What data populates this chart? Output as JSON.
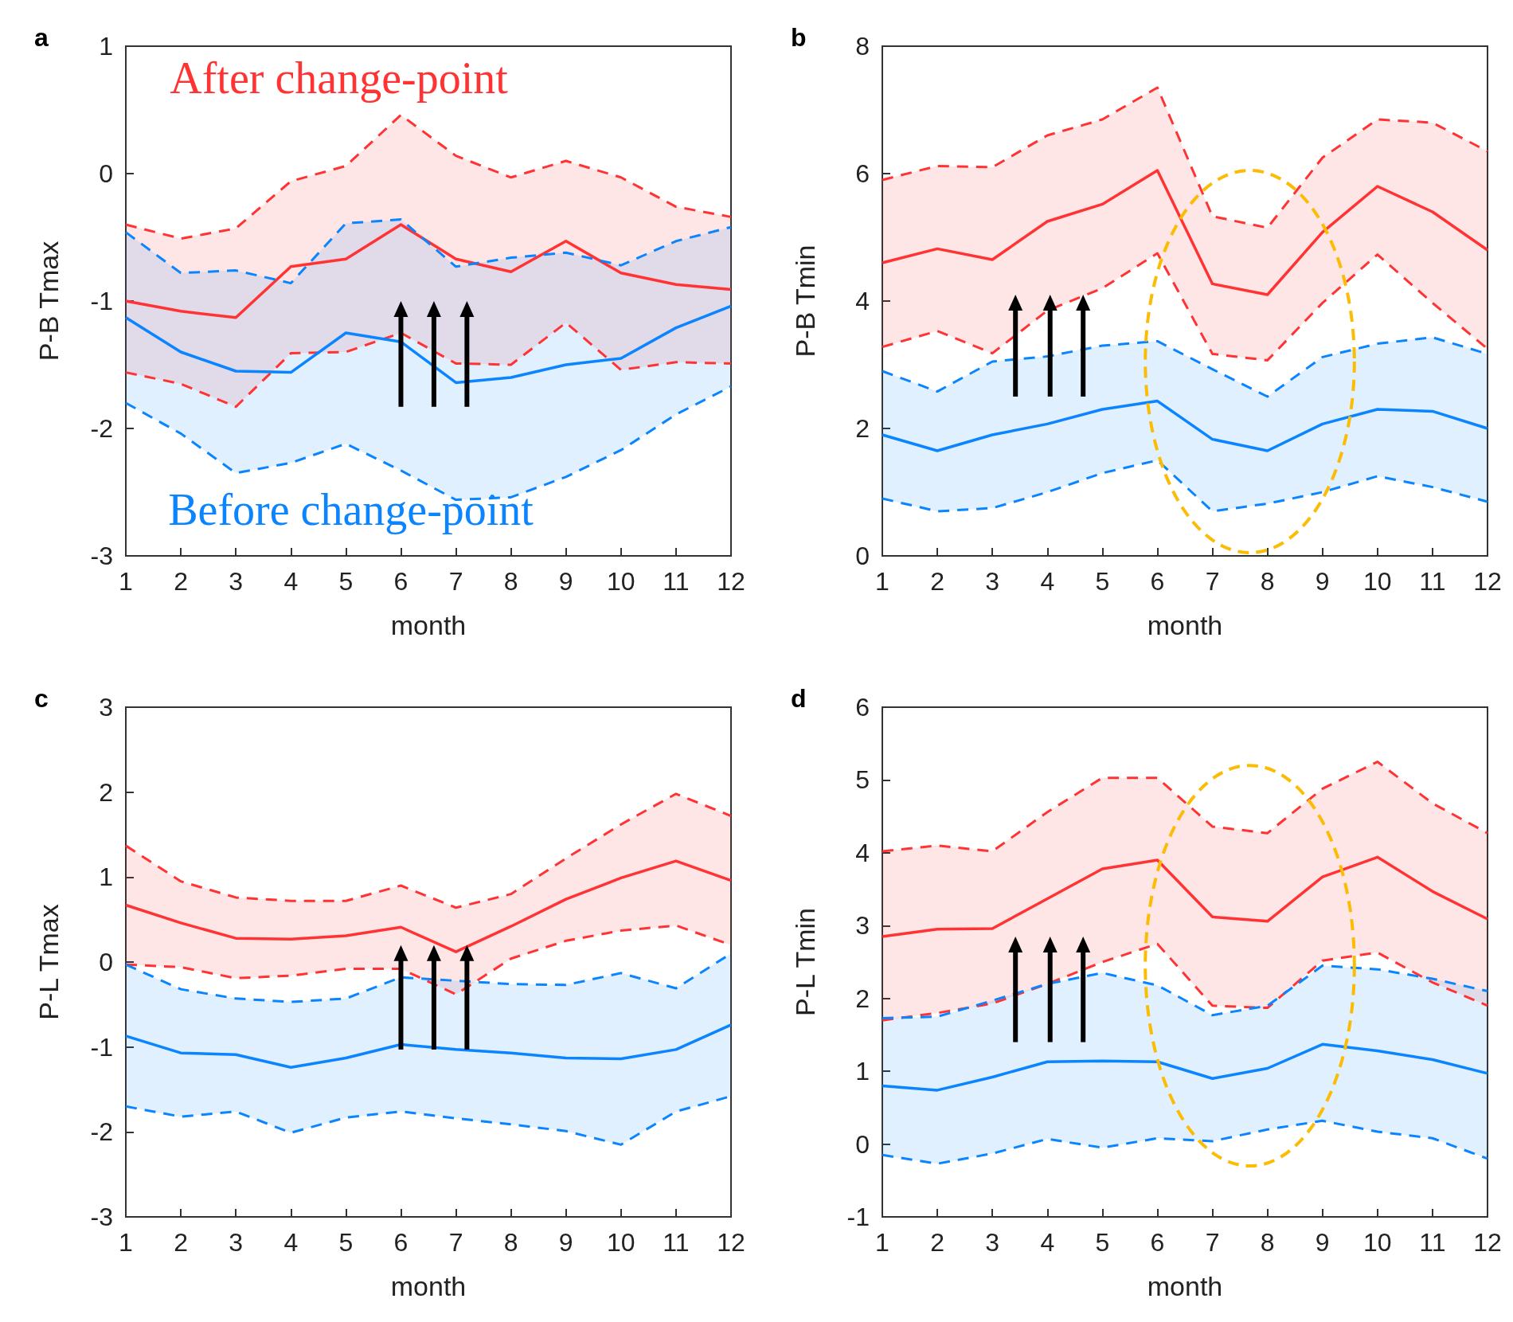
{
  "chart_data": [
    {
      "type": "line",
      "title": "a",
      "xlabel": "month",
      "ylabel": "P-B Tmax",
      "x": [
        1,
        2,
        3,
        4,
        5,
        6,
        7,
        8,
        9,
        10,
        11,
        12
      ],
      "xlim": [
        1,
        12
      ],
      "xticks": [
        1,
        2,
        3,
        4,
        5,
        6,
        7,
        8,
        9,
        10,
        11,
        12
      ],
      "ylim": [
        -3,
        1
      ],
      "yticks": [
        -3,
        -2,
        -1,
        0,
        1
      ],
      "grid": false,
      "series": [
        {
          "name": "After change-point",
          "color": "#ff3333",
          "values": [
            -1.0,
            -1.08,
            -1.13,
            -0.73,
            -0.67,
            -0.4,
            -0.67,
            -0.77,
            -0.53,
            -0.78,
            -0.87,
            -0.91
          ],
          "lower": [
            -1.56,
            -1.65,
            -1.83,
            -1.41,
            -1.4,
            -1.25,
            -1.49,
            -1.5,
            -1.17,
            -1.54,
            -1.48,
            -1.49
          ],
          "upper": [
            -0.4,
            -0.51,
            -0.43,
            -0.06,
            0.06,
            0.46,
            0.14,
            -0.03,
            0.1,
            -0.03,
            -0.26,
            -0.34
          ]
        },
        {
          "color": "#ff3333",
          "line_style": "dashed",
          "values": [
            -1.56,
            -1.65,
            -1.83,
            -1.41,
            -1.4,
            -1.25,
            -1.49,
            -1.5,
            -1.17,
            -1.54,
            -1.48,
            -1.49
          ]
        },
        {
          "color": "#ff3333",
          "line_style": "dashed",
          "values": [
            -0.4,
            -0.51,
            -0.43,
            -0.06,
            0.06,
            0.46,
            0.14,
            -0.03,
            0.1,
            -0.03,
            -0.26,
            -0.34
          ]
        },
        {
          "name": "Before change-point",
          "color": "#0a84ff",
          "values": [
            -1.13,
            -1.4,
            -1.55,
            -1.56,
            -1.25,
            -1.32,
            -1.64,
            -1.6,
            -1.5,
            -1.45,
            -1.21,
            -1.04
          ],
          "lower": [
            -1.8,
            -2.04,
            -2.35,
            -2.27,
            -2.12,
            -2.33,
            -2.56,
            -2.54,
            -2.38,
            -2.17,
            -1.89,
            -1.67
          ],
          "upper": [
            -0.46,
            -0.78,
            -0.76,
            -0.86,
            -0.39,
            -0.36,
            -0.73,
            -0.66,
            -0.62,
            -0.72,
            -0.53,
            -0.42
          ]
        },
        {
          "color": "#0a84ff",
          "line_style": "dashed",
          "values": [
            -1.8,
            -2.04,
            -2.35,
            -2.27,
            -2.12,
            -2.33,
            -2.56,
            -2.54,
            -2.38,
            -2.17,
            -1.89,
            -1.67
          ]
        },
        {
          "color": "#0a84ff",
          "line_style": "dashed",
          "values": [
            -0.46,
            -0.78,
            -0.76,
            -0.86,
            -0.39,
            -0.36,
            -0.73,
            -0.66,
            -0.62,
            -0.72,
            -0.53,
            -0.42
          ]
        }
      ]
    },
    {
      "type": "line",
      "title": "b",
      "xlabel": "month",
      "ylabel": "P-B Tmin",
      "x": [
        1,
        2,
        3,
        4,
        5,
        6,
        7,
        8,
        9,
        10,
        11,
        12
      ],
      "xlim": [
        1,
        12
      ],
      "xticks": [
        1,
        2,
        3,
        4,
        5,
        6,
        7,
        8,
        9,
        10,
        11,
        12
      ],
      "ylim": [
        0,
        8
      ],
      "yticks": [
        0,
        2,
        4,
        6,
        8
      ],
      "grid": false,
      "series": [
        {
          "color": "#ff3333",
          "values": [
            4.6,
            4.82,
            4.65,
            5.25,
            5.52,
            6.05,
            4.27,
            4.1,
            5.08,
            5.8,
            5.4,
            4.8
          ],
          "lower": [
            3.28,
            3.53,
            3.18,
            3.85,
            4.2,
            4.75,
            3.17,
            3.07,
            3.97,
            4.73,
            3.97,
            3.25
          ],
          "upper": [
            5.9,
            6.12,
            6.1,
            6.6,
            6.85,
            7.35,
            5.33,
            5.15,
            6.25,
            6.85,
            6.8,
            6.35
          ]
        },
        {
          "color": "#ff3333",
          "line_style": "dashed",
          "values": [
            3.28,
            3.53,
            3.18,
            3.85,
            4.2,
            4.75,
            3.17,
            3.07,
            3.97,
            4.73,
            3.97,
            3.25
          ]
        },
        {
          "color": "#ff3333",
          "line_style": "dashed",
          "values": [
            5.9,
            6.12,
            6.1,
            6.6,
            6.85,
            7.35,
            5.33,
            5.15,
            6.25,
            6.85,
            6.8,
            6.35
          ]
        },
        {
          "color": "#0a84ff",
          "values": [
            1.9,
            1.65,
            1.9,
            2.07,
            2.3,
            2.43,
            1.83,
            1.65,
            2.07,
            2.3,
            2.27,
            2.0
          ],
          "lower": [
            0.9,
            0.7,
            0.75,
            1.0,
            1.3,
            1.5,
            0.7,
            0.82,
            1.0,
            1.25,
            1.08,
            0.85
          ],
          "upper": [
            2.9,
            2.58,
            3.05,
            3.13,
            3.3,
            3.37,
            2.93,
            2.5,
            3.12,
            3.33,
            3.43,
            3.17
          ]
        },
        {
          "color": "#0a84ff",
          "line_style": "dashed",
          "values": [
            0.9,
            0.7,
            0.75,
            1.0,
            1.3,
            1.5,
            0.7,
            0.82,
            1.0,
            1.25,
            1.08,
            0.85
          ]
        },
        {
          "color": "#0a84ff",
          "line_style": "dashed",
          "values": [
            2.9,
            2.58,
            3.05,
            3.13,
            3.3,
            3.37,
            2.93,
            2.5,
            3.12,
            3.33,
            3.43,
            3.17
          ]
        }
      ]
    },
    {
      "type": "line",
      "title": "c",
      "xlabel": "month",
      "ylabel": "P-L Tmax",
      "x": [
        1,
        2,
        3,
        4,
        5,
        6,
        7,
        8,
        9,
        10,
        11,
        12
      ],
      "xlim": [
        1,
        12
      ],
      "xticks": [
        1,
        2,
        3,
        4,
        5,
        6,
        7,
        8,
        9,
        10,
        11,
        12
      ],
      "ylim": [
        -3,
        3
      ],
      "yticks": [
        -3,
        -2,
        -1,
        0,
        1,
        2,
        3
      ],
      "grid": false,
      "series": [
        {
          "color": "#ff3333",
          "values": [
            0.67,
            0.46,
            0.28,
            0.27,
            0.31,
            0.41,
            0.12,
            0.42,
            0.74,
            0.99,
            1.19,
            0.96
          ],
          "lower": [
            -0.03,
            -0.06,
            -0.19,
            -0.16,
            -0.08,
            -0.08,
            -0.38,
            0.04,
            0.25,
            0.37,
            0.43,
            0.2
          ],
          "upper": [
            1.37,
            0.95,
            0.76,
            0.72,
            0.72,
            0.9,
            0.64,
            0.8,
            1.22,
            1.62,
            1.98,
            1.72
          ]
        },
        {
          "color": "#ff3333",
          "line_style": "dashed",
          "values": [
            -0.03,
            -0.06,
            -0.19,
            -0.16,
            -0.08,
            -0.08,
            -0.38,
            0.04,
            0.25,
            0.37,
            0.43,
            0.2
          ]
        },
        {
          "color": "#ff3333",
          "line_style": "dashed",
          "values": [
            1.37,
            0.95,
            0.76,
            0.72,
            0.72,
            0.9,
            0.64,
            0.8,
            1.22,
            1.62,
            1.98,
            1.72
          ]
        },
        {
          "color": "#0a84ff",
          "values": [
            -0.87,
            -1.07,
            -1.09,
            -1.24,
            -1.13,
            -0.97,
            -1.03,
            -1.07,
            -1.13,
            -1.14,
            -1.03,
            -0.74
          ],
          "lower": [
            -1.7,
            -1.82,
            -1.76,
            -2.01,
            -1.83,
            -1.76,
            -1.84,
            -1.91,
            -1.99,
            -2.15,
            -1.76,
            -1.58
          ],
          "upper": [
            -0.03,
            -0.32,
            -0.43,
            -0.47,
            -0.43,
            -0.18,
            -0.22,
            -0.26,
            -0.27,
            -0.13,
            -0.31,
            0.1
          ]
        },
        {
          "color": "#0a84ff",
          "line_style": "dashed",
          "values": [
            -1.7,
            -1.82,
            -1.76,
            -2.01,
            -1.83,
            -1.76,
            -1.84,
            -1.91,
            -1.99,
            -2.15,
            -1.76,
            -1.58
          ]
        },
        {
          "color": "#0a84ff",
          "line_style": "dashed",
          "values": [
            -0.03,
            -0.32,
            -0.43,
            -0.47,
            -0.43,
            -0.18,
            -0.22,
            -0.26,
            -0.27,
            -0.13,
            -0.31,
            0.1
          ]
        }
      ]
    },
    {
      "type": "line",
      "title": "d",
      "xlabel": "month",
      "ylabel": "P-L Tmin",
      "x": [
        1,
        2,
        3,
        4,
        5,
        6,
        7,
        8,
        9,
        10,
        11,
        12
      ],
      "xlim": [
        1,
        12
      ],
      "xticks": [
        1,
        2,
        3,
        4,
        5,
        6,
        7,
        8,
        9,
        10,
        11,
        12
      ],
      "ylim": [
        -1,
        6
      ],
      "yticks": [
        -1,
        0,
        1,
        2,
        3,
        4,
        5,
        6
      ],
      "grid": false,
      "series": [
        {
          "color": "#ff3333",
          "values": [
            2.85,
            2.95,
            2.96,
            3.37,
            3.78,
            3.9,
            3.12,
            3.06,
            3.67,
            3.94,
            3.47,
            3.09
          ],
          "lower": [
            1.7,
            1.8,
            1.93,
            2.2,
            2.5,
            2.75,
            1.9,
            1.87,
            2.52,
            2.63,
            2.22,
            1.9
          ],
          "upper": [
            4.02,
            4.1,
            4.02,
            4.56,
            5.03,
            5.03,
            4.36,
            4.27,
            4.88,
            5.25,
            4.68,
            4.27
          ]
        },
        {
          "color": "#ff3333",
          "line_style": "dashed",
          "values": [
            1.7,
            1.8,
            1.93,
            2.2,
            2.5,
            2.75,
            1.9,
            1.87,
            2.52,
            2.63,
            2.22,
            1.9
          ]
        },
        {
          "color": "#ff3333",
          "line_style": "dashed",
          "values": [
            4.02,
            4.1,
            4.02,
            4.56,
            5.03,
            5.03,
            4.36,
            4.27,
            4.88,
            5.25,
            4.68,
            4.27
          ]
        },
        {
          "color": "#0a84ff",
          "values": [
            0.8,
            0.74,
            0.92,
            1.13,
            1.14,
            1.13,
            0.9,
            1.04,
            1.37,
            1.28,
            1.16,
            0.97
          ],
          "lower": [
            -0.15,
            -0.27,
            -0.13,
            0.07,
            -0.05,
            0.08,
            0.04,
            0.2,
            0.32,
            0.17,
            0.08,
            -0.2
          ],
          "upper": [
            1.73,
            1.75,
            1.97,
            2.2,
            2.35,
            2.18,
            1.77,
            1.9,
            2.45,
            2.4,
            2.27,
            2.1
          ]
        },
        {
          "color": "#0a84ff",
          "line_style": "dashed",
          "values": [
            -0.15,
            -0.27,
            -0.13,
            0.07,
            -0.05,
            0.08,
            0.04,
            0.2,
            0.32,
            0.17,
            0.08,
            -0.2
          ]
        },
        {
          "color": "#0a84ff",
          "line_style": "dashed",
          "values": [
            1.73,
            1.75,
            1.97,
            2.2,
            2.35,
            2.18,
            1.77,
            1.9,
            2.45,
            2.4,
            2.27,
            2.1
          ]
        }
      ]
    }
  ]
}
